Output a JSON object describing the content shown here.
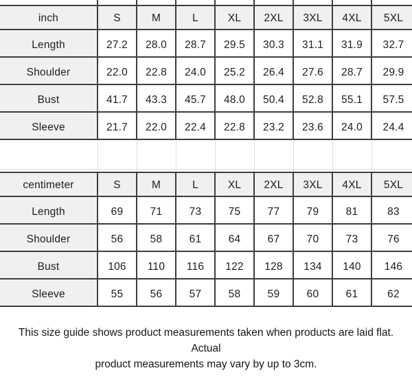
{
  "chart_data": [
    {
      "type": "table",
      "title": "inch",
      "columns": [
        "S",
        "M",
        "L",
        "XL",
        "2XL",
        "3XL",
        "4XL",
        "5XL"
      ],
      "rows": [
        {
          "label": "Length",
          "values": [
            "27.2",
            "28.0",
            "28.7",
            "29.5",
            "30.3",
            "31.1",
            "31.9",
            "32.7"
          ]
        },
        {
          "label": "Shoulder",
          "values": [
            "22.0",
            "22.8",
            "24.0",
            "25.2",
            "26.4",
            "27.6",
            "28.7",
            "29.9"
          ]
        },
        {
          "label": "Bust",
          "values": [
            "41.7",
            "43.3",
            "45.7",
            "48.0",
            "50.4",
            "52.8",
            "55.1",
            "57.5"
          ]
        },
        {
          "label": "Sleeve",
          "values": [
            "21.7",
            "22.0",
            "22.4",
            "22.8",
            "23.2",
            "23.6",
            "24.0",
            "24.4"
          ]
        }
      ]
    },
    {
      "type": "table",
      "title": "centimeter",
      "columns": [
        "S",
        "M",
        "L",
        "XL",
        "2XL",
        "3XL",
        "4XL",
        "5XL"
      ],
      "rows": [
        {
          "label": "Length",
          "values": [
            "69",
            "71",
            "73",
            "75",
            "77",
            "79",
            "81",
            "83"
          ]
        },
        {
          "label": "Shoulder",
          "values": [
            "56",
            "58",
            "61",
            "64",
            "67",
            "70",
            "73",
            "76"
          ]
        },
        {
          "label": "Bust",
          "values": [
            "106",
            "110",
            "116",
            "122",
            "128",
            "134",
            "140",
            "146"
          ]
        },
        {
          "label": "Sleeve",
          "values": [
            "55",
            "56",
            "57",
            "58",
            "59",
            "60",
            "61",
            "62"
          ]
        }
      ]
    }
  ],
  "footer": {
    "line1": "This size guide shows product measurements taken when products are laid flat. Actual",
    "line2": "product measurements may vary by up to 3cm."
  },
  "colors": {
    "border_dark": "#3e3e3e",
    "shaded_cell": "#f0f0f0",
    "faint_gridline": "#dcdfe3",
    "text": "#1d1d1d"
  }
}
